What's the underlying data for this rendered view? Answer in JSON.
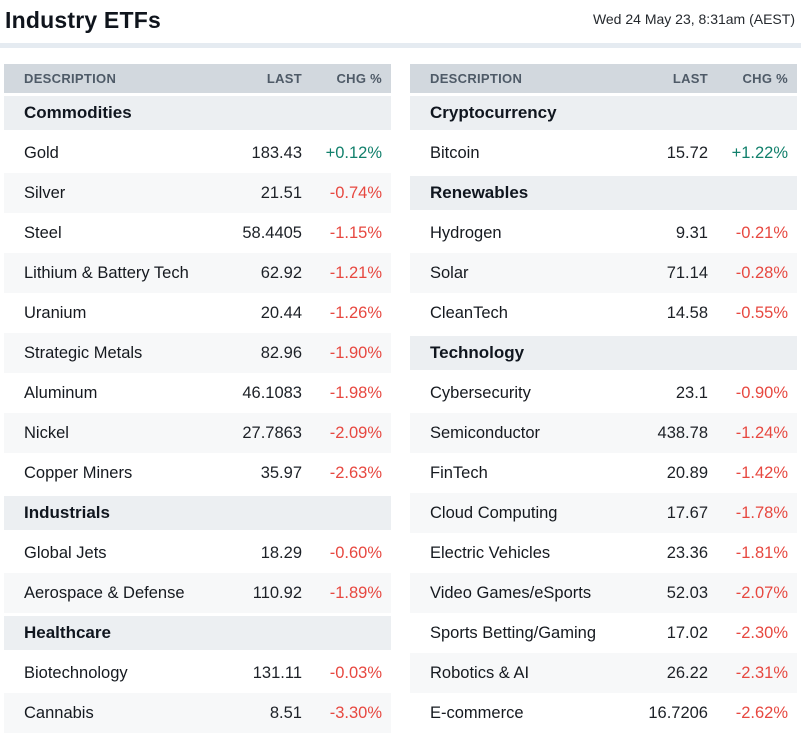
{
  "page": {
    "title": "Industry ETFs",
    "timestamp": "Wed 24 May 23, 8:31am (AEST)"
  },
  "table_headers": {
    "description": "DESCRIPTION",
    "last": "LAST",
    "chg": "CHG %"
  },
  "colors": {
    "positive": "#12806c",
    "negative": "#e74840",
    "header_bg": "#d2d8de",
    "section_bg": "#eceff2",
    "stripe_bg": "#f7f8f9",
    "divider": "#e5ebf1"
  },
  "columns": {
    "left": {
      "sections": [
        {
          "name": "Commodities",
          "rows": [
            {
              "description": "Gold",
              "last": "183.43",
              "chg": "+0.12%"
            },
            {
              "description": "Silver",
              "last": "21.51",
              "chg": "-0.74%"
            },
            {
              "description": "Steel",
              "last": "58.4405",
              "chg": "-1.15%"
            },
            {
              "description": "Lithium & Battery Tech",
              "last": "62.92",
              "chg": "-1.21%"
            },
            {
              "description": "Uranium",
              "last": "20.44",
              "chg": "-1.26%"
            },
            {
              "description": "Strategic Metals",
              "last": "82.96",
              "chg": "-1.90%"
            },
            {
              "description": "Aluminum",
              "last": "46.1083",
              "chg": "-1.98%"
            },
            {
              "description": "Nickel",
              "last": "27.7863",
              "chg": "-2.09%"
            },
            {
              "description": "Copper Miners",
              "last": "35.97",
              "chg": "-2.63%"
            }
          ]
        },
        {
          "name": "Industrials",
          "rows": [
            {
              "description": "Global Jets",
              "last": "18.29",
              "chg": "-0.60%"
            },
            {
              "description": "Aerospace & Defense",
              "last": "110.92",
              "chg": "-1.89%"
            }
          ]
        },
        {
          "name": "Healthcare",
          "rows": [
            {
              "description": "Biotechnology",
              "last": "131.11",
              "chg": "-0.03%"
            },
            {
              "description": "Cannabis",
              "last": "8.51",
              "chg": "-3.30%"
            }
          ]
        }
      ]
    },
    "right": {
      "sections": [
        {
          "name": "Cryptocurrency",
          "rows": [
            {
              "description": "Bitcoin",
              "last": "15.72",
              "chg": "+1.22%"
            }
          ]
        },
        {
          "name": "Renewables",
          "rows": [
            {
              "description": "Hydrogen",
              "last": "9.31",
              "chg": "-0.21%"
            },
            {
              "description": "Solar",
              "last": "71.14",
              "chg": "-0.28%"
            },
            {
              "description": "CleanTech",
              "last": "14.58",
              "chg": "-0.55%"
            }
          ]
        },
        {
          "name": "Technology",
          "rows": [
            {
              "description": "Cybersecurity",
              "last": "23.1",
              "chg": "-0.90%"
            },
            {
              "description": "Semiconductor",
              "last": "438.78",
              "chg": "-1.24%"
            },
            {
              "description": "FinTech",
              "last": "20.89",
              "chg": "-1.42%"
            },
            {
              "description": "Cloud Computing",
              "last": "17.67",
              "chg": "-1.78%"
            },
            {
              "description": "Electric Vehicles",
              "last": "23.36",
              "chg": "-1.81%"
            },
            {
              "description": "Video Games/eSports",
              "last": "52.03",
              "chg": "-2.07%"
            },
            {
              "description": "Sports Betting/Gaming",
              "last": "17.02",
              "chg": "-2.30%"
            },
            {
              "description": "Robotics & AI",
              "last": "26.22",
              "chg": "-2.31%"
            },
            {
              "description": "E-commerce",
              "last": "16.7206",
              "chg": "-2.62%"
            }
          ]
        }
      ]
    }
  }
}
